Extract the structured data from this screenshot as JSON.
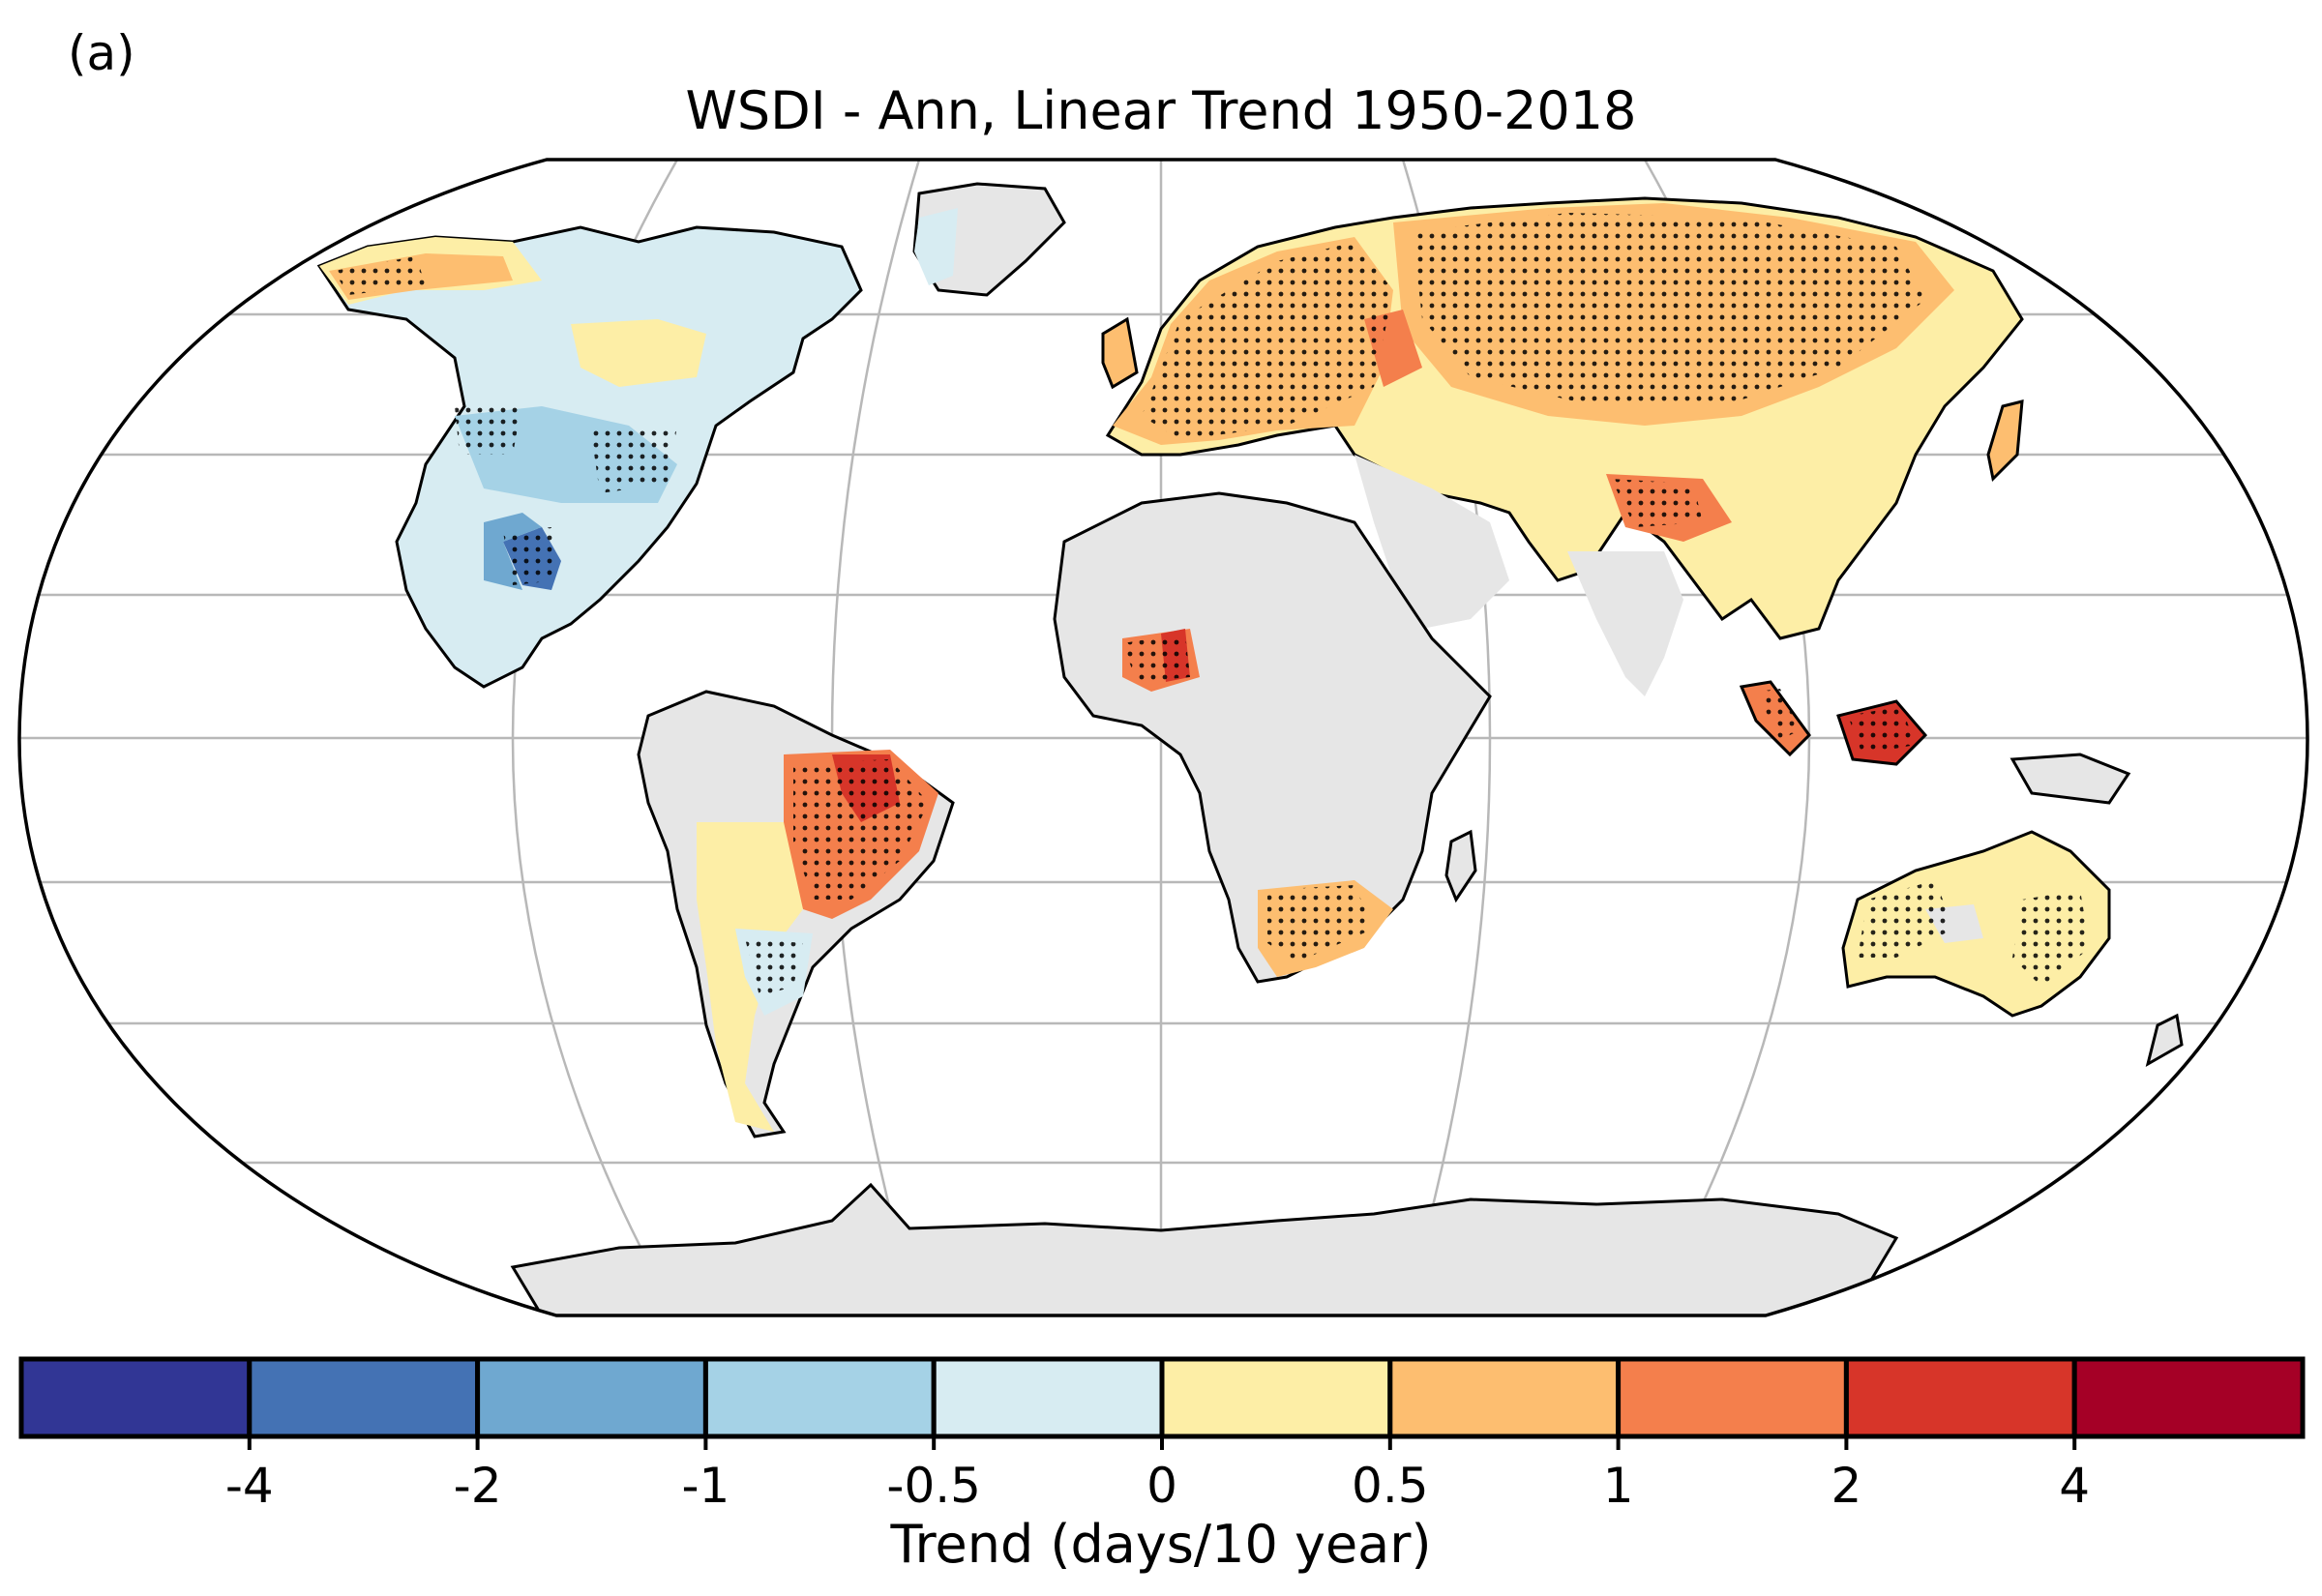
{
  "panel_label": "(a)",
  "title": "WSDI - Ann, Linear Trend 1950-2018",
  "colorbar": {
    "label": "Trend (days/10 year)",
    "colors": [
      "#313695",
      "#4472b4",
      "#6fa8d0",
      "#a5d2e6",
      "#d7ecf2",
      "#fdeea6",
      "#fdbe70",
      "#f47f4c",
      "#d73529",
      "#a50026"
    ],
    "tick_labels": [
      "-4",
      "-2",
      "-1",
      "-0.5",
      "0",
      "0.5",
      "1",
      "2",
      "4"
    ]
  },
  "map_colors": {
    "land_no_data": "#e6e6e6",
    "gridline": "#b8b8b8",
    "coastline": "#000000",
    "ocean": "#ffffff"
  }
}
